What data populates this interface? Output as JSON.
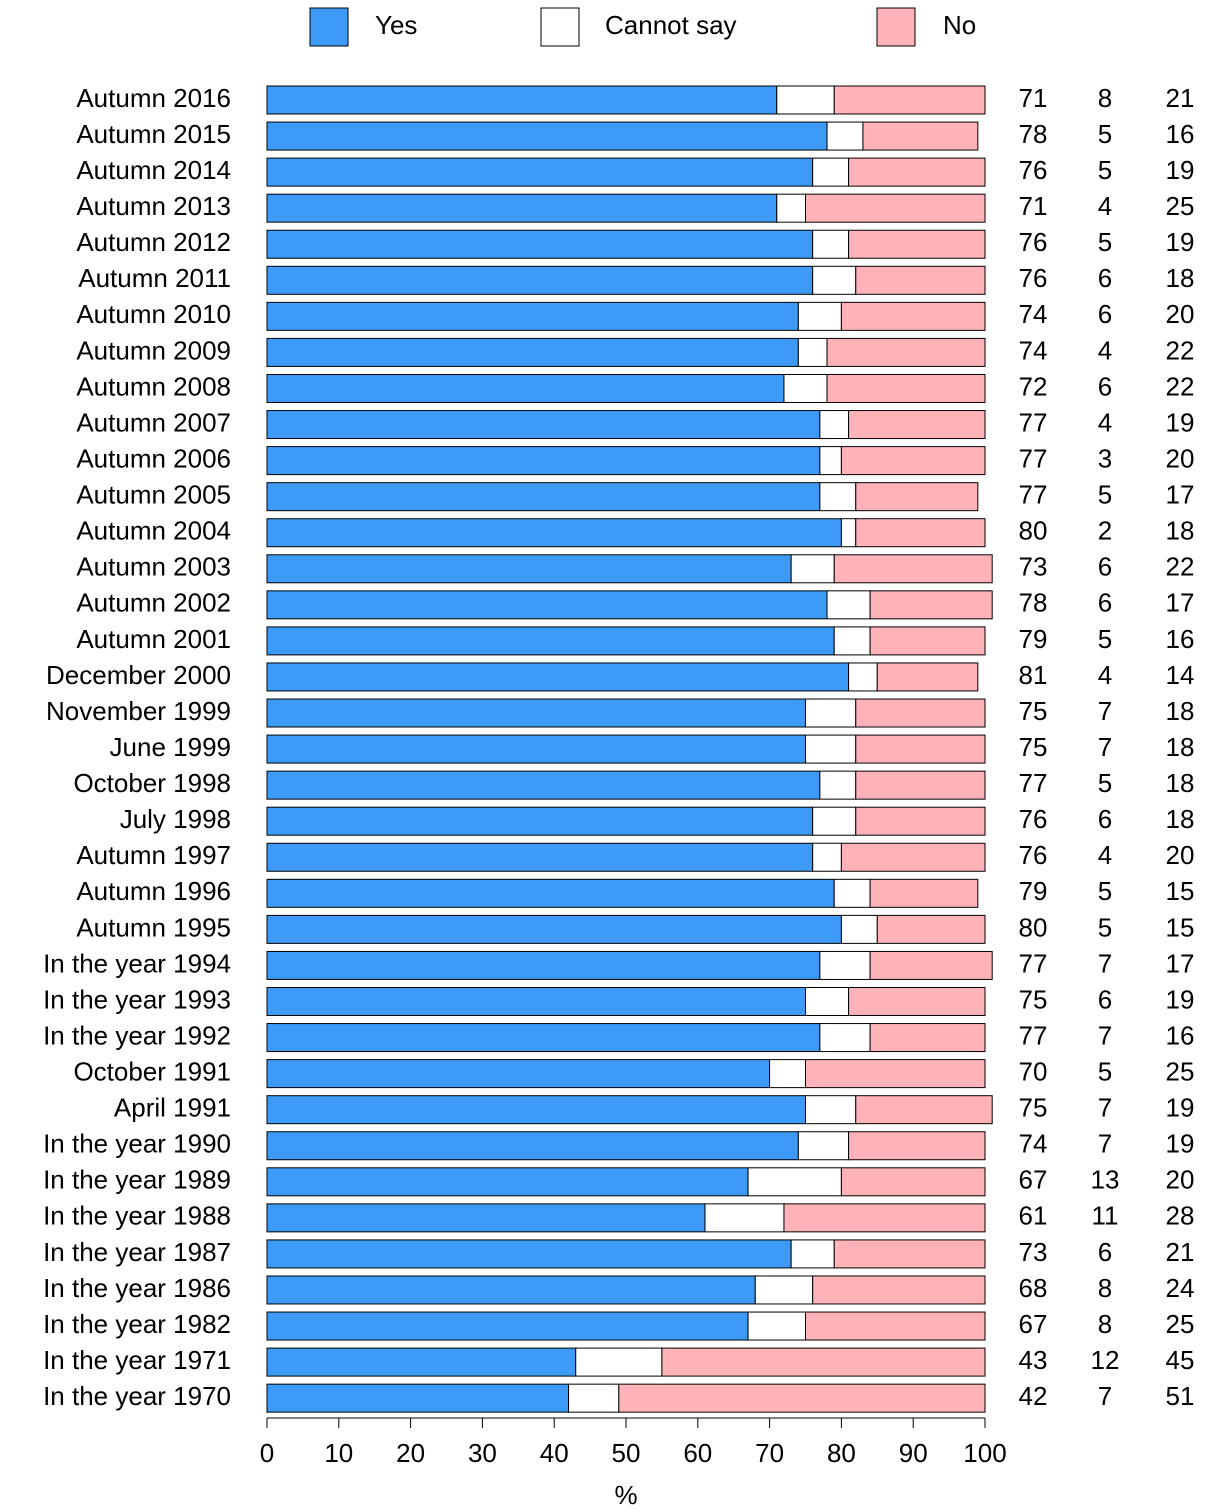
{
  "chart_data": {
    "type": "stacked_bar_horizontal",
    "categories": [
      "Autumn 2016",
      "Autumn 2015",
      "Autumn 2014",
      "Autumn 2013",
      "Autumn 2012",
      "Autumn 2011",
      "Autumn 2010",
      "Autumn 2009",
      "Autumn 2008",
      "Autumn 2007",
      "Autumn 2006",
      "Autumn 2005",
      "Autumn 2004",
      "Autumn 2003",
      "Autumn 2002",
      "Autumn 2001",
      "December 2000",
      "November 1999",
      "June 1999",
      "October 1998",
      "July 1998",
      "Autumn 1997",
      "Autumn 1996",
      "Autumn 1995",
      "In the year 1994",
      "In the year 1993",
      "In the year 1992",
      "October 1991",
      "April 1991",
      "In the year 1990",
      "In the year 1989",
      "In the year 1988",
      "In the year 1987",
      "In the year 1986",
      "In the year 1982",
      "In the year 1971",
      "In the year 1970"
    ],
    "series": [
      {
        "name": "Yes",
        "color": "#3d9bf7",
        "values": [
          71,
          78,
          76,
          71,
          76,
          76,
          74,
          74,
          72,
          77,
          77,
          77,
          80,
          73,
          78,
          79,
          81,
          75,
          75,
          77,
          76,
          76,
          79,
          80,
          77,
          75,
          77,
          70,
          75,
          74,
          67,
          61,
          73,
          68,
          67,
          43,
          42
        ]
      },
      {
        "name": "Cannot say",
        "color": "#ffffff",
        "values": [
          8,
          5,
          5,
          4,
          5,
          6,
          6,
          4,
          6,
          4,
          3,
          5,
          2,
          6,
          6,
          5,
          4,
          7,
          7,
          5,
          6,
          4,
          5,
          5,
          7,
          6,
          7,
          5,
          7,
          7,
          13,
          11,
          6,
          8,
          8,
          12,
          7
        ]
      },
      {
        "name": "No",
        "color": "#ffb3b8",
        "values": [
          21,
          16,
          19,
          25,
          19,
          18,
          20,
          22,
          22,
          19,
          20,
          17,
          18,
          22,
          17,
          16,
          14,
          18,
          18,
          18,
          18,
          20,
          15,
          15,
          17,
          19,
          16,
          25,
          19,
          19,
          20,
          28,
          21,
          24,
          25,
          45,
          51
        ]
      }
    ],
    "xlabel": "%",
    "xlim": [
      0,
      100
    ],
    "xticks": [
      0,
      10,
      20,
      30,
      40,
      50,
      60,
      70,
      80,
      90,
      100
    ],
    "legend": "top"
  }
}
